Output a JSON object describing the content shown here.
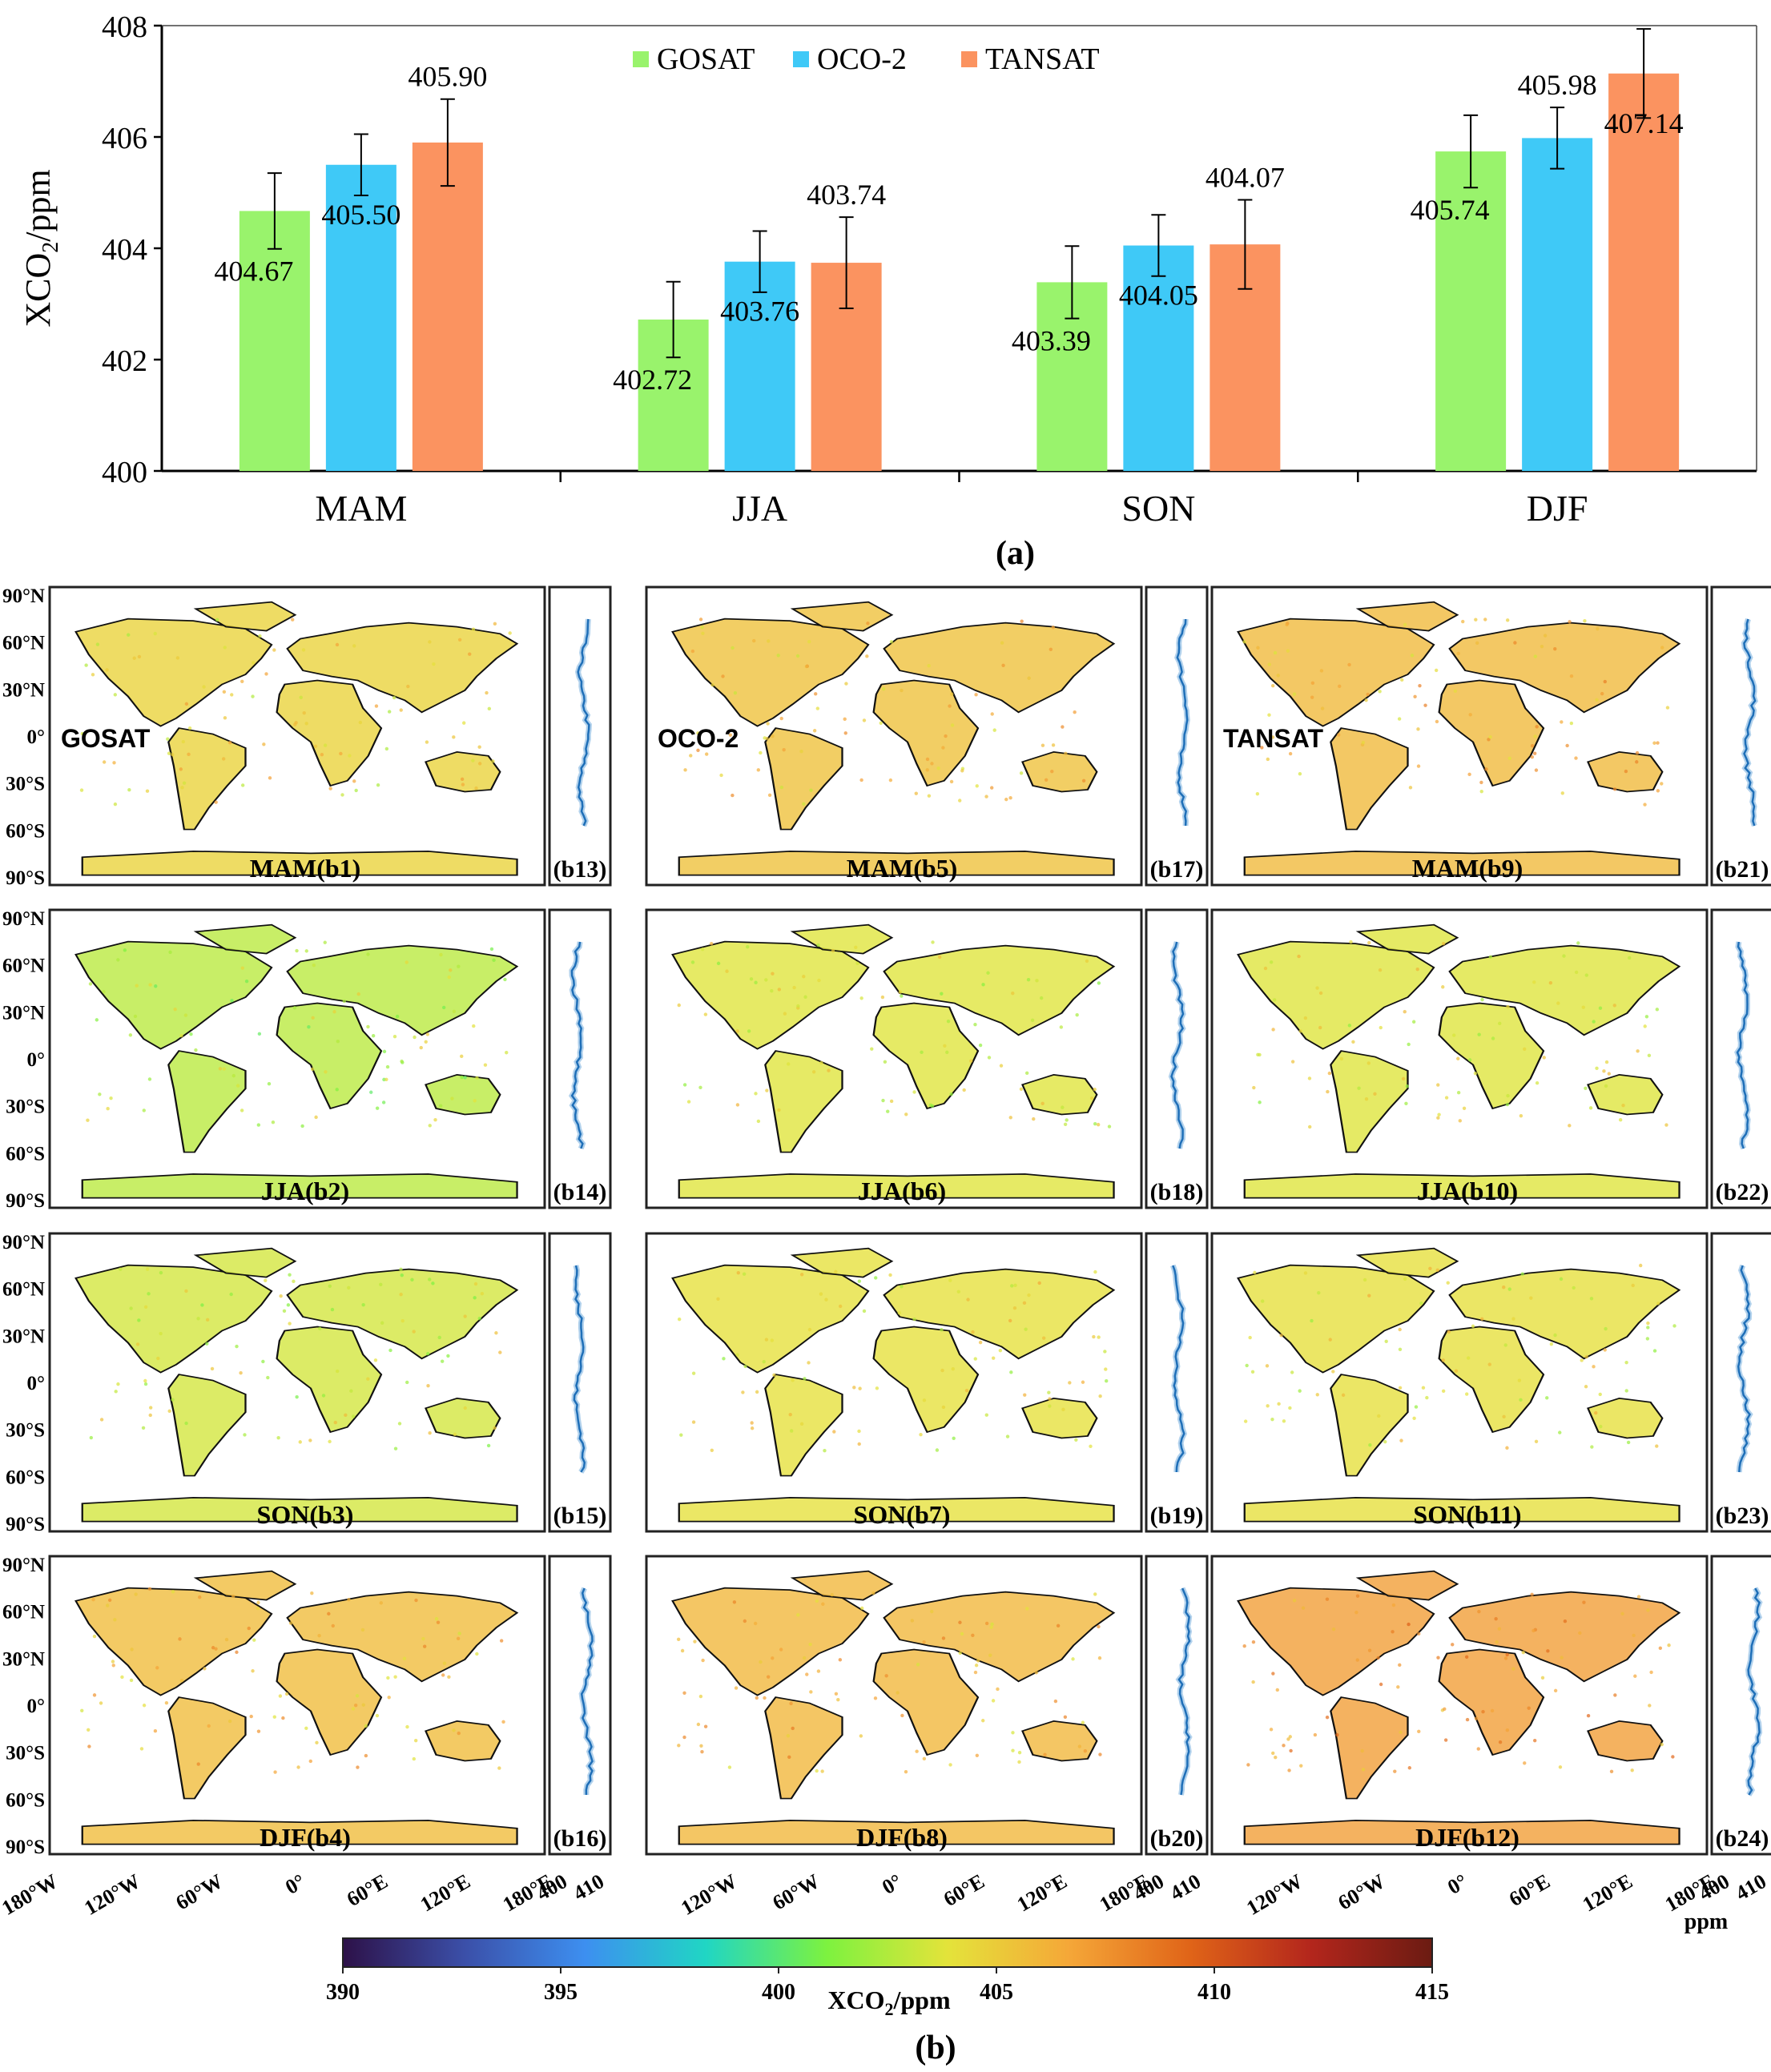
{
  "chart_data": [
    {
      "type": "bar",
      "panel_label": "(a)",
      "ylabel_main": "XCO",
      "ylabel_sub": "2",
      "ylabel_unit": "/ppm",
      "ylim": [
        400,
        408
      ],
      "yticks": [
        "400",
        "402",
        "404",
        "406",
        "408"
      ],
      "categories": [
        "MAM",
        "JJA",
        "SON",
        "DJF"
      ],
      "legend_position": "top-center",
      "series": [
        {
          "name": "GOSAT",
          "color": "#99f36c",
          "values": [
            404.67,
            402.72,
            403.39,
            405.74
          ],
          "labels": [
            "404.67",
            "402.72",
            "403.39",
            "405.74"
          ],
          "errors": [
            0.68,
            0.68,
            0.65,
            0.65
          ]
        },
        {
          "name": "OCO-2",
          "color": "#3fc9f7",
          "values": [
            405.5,
            403.76,
            404.05,
            405.98
          ],
          "labels": [
            "405.50",
            "403.76",
            "404.05",
            "405.98"
          ],
          "errors": [
            0.55,
            0.55,
            0.55,
            0.55
          ]
        },
        {
          "name": "TANSAT",
          "color": "#fb9360",
          "values": [
            405.9,
            403.74,
            404.07,
            407.14
          ],
          "labels": [
            "405.90",
            "403.74",
            "404.07",
            "407.14"
          ],
          "errors": [
            0.78,
            0.82,
            0.8,
            0.8
          ]
        }
      ]
    },
    {
      "type": "heatmap",
      "panel_label": "(b)",
      "columns": [
        "GOSAT",
        "OCO-2",
        "TANSAT"
      ],
      "map_labels": [
        [
          "MAM(b1)",
          "MAM(b5)",
          "MAM(b9)"
        ],
        [
          "JJA(b2)",
          "JJA(b6)",
          "JJA(b10)"
        ],
        [
          "SON(b3)",
          "SON(b7)",
          "SON(b11)"
        ],
        [
          "DJF(b4)",
          "DJF(b8)",
          "DJF(b12)"
        ]
      ],
      "profile_labels": [
        [
          "(b13)",
          "(b17)",
          "(b21)"
        ],
        [
          "(b14)",
          "(b18)",
          "(b22)"
        ],
        [
          "(b15)",
          "(b19)",
          "(b23)"
        ],
        [
          "(b16)",
          "(b20)",
          "(b24)"
        ]
      ],
      "mean_xco2_ppm": [
        [
          404.67,
          405.5,
          405.9
        ],
        [
          402.72,
          403.76,
          403.74
        ],
        [
          403.39,
          404.05,
          404.07
        ],
        [
          405.74,
          405.98,
          407.14
        ]
      ],
      "lat_ticks": [
        "90°N",
        "60°N",
        "30°N",
        "0°",
        "30°S",
        "60°S",
        "90°S"
      ],
      "lon_ticks_first": [
        "180°W",
        "120°W",
        "60°W",
        "0°",
        "60°E",
        "120°E",
        "180°E"
      ],
      "lon_ticks_other": [
        "120°W",
        "60°W",
        "0°",
        "60°E",
        "120°E",
        "180°E"
      ],
      "profile_xticks": [
        "400",
        "410"
      ],
      "profile_unit": "ppm",
      "colorbar": {
        "min": 390,
        "max": 415,
        "ticks": [
          "390",
          "395",
          "400",
          "405",
          "410",
          "415"
        ],
        "label_main": "XCO",
        "label_sub": "2",
        "label_unit": "/ppm",
        "colors": [
          "#2d1148",
          "#3b4fa8",
          "#3d8ff0",
          "#20d6c4",
          "#7df23f",
          "#e4e33a",
          "#f5a738",
          "#e06418",
          "#b3261c",
          "#6b1b12"
        ]
      }
    }
  ]
}
